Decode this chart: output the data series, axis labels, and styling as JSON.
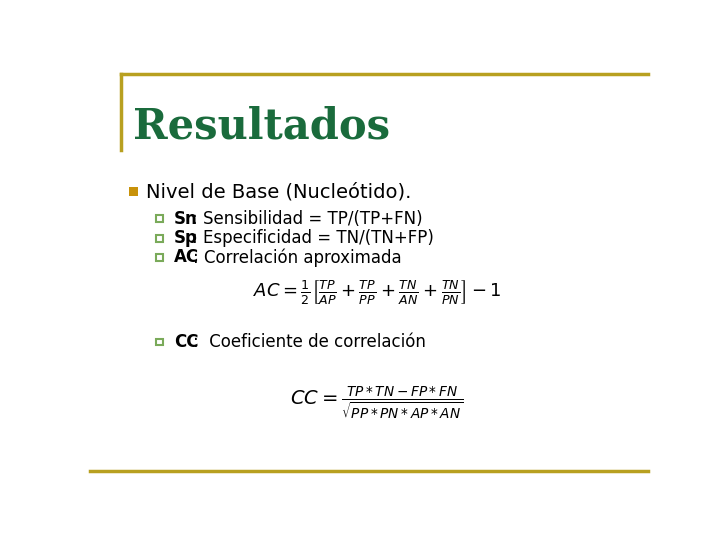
{
  "title": "Resultados",
  "title_color": "#1A6B3C",
  "title_fontsize": 30,
  "bg_color": "#FFFFFF",
  "border_color": "#B8A020",
  "main_bullet_color": "#C8920A",
  "sub_bullet_edge": "#7AAA5A",
  "sub_bullet_face": "#FFFFFF",
  "bullet1_text": "Nivel de Base (Nucleótido).",
  "sub1_bold": "Sn",
  "sub1_rest": ": Sensibilidad = TP/(TP+FN)",
  "sub2_bold": "Sp",
  "sub2_rest": ": Especificidad = TN/(TN+FP)",
  "sub3_bold": "AC",
  "sub3_rest": ": Correlación aproximada",
  "sub4_bold": "CC",
  "sub4_rest": ":  Coeficiente de correlación"
}
